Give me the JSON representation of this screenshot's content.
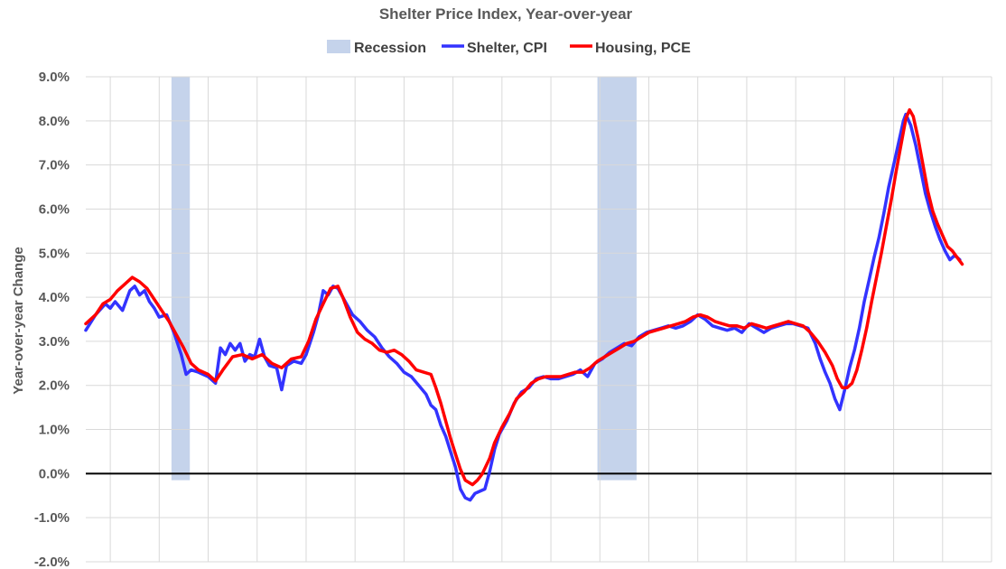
{
  "chart_data": {
    "type": "line",
    "title": "Shelter Price Index, Year-over-year",
    "ylabel": "Year-over-year Change",
    "xlabel": "",
    "ylim": [
      -2.0,
      9.0
    ],
    "y_ticks": [
      "9.0%",
      "8.0%",
      "7.0%",
      "6.0%",
      "5.0%",
      "4.0%",
      "3.0%",
      "2.0%",
      "1.0%",
      "0.0%",
      "-1.0%",
      "-2.0%"
    ],
    "x_range": [
      1987,
      2024
    ],
    "grid": true,
    "legend_position": "top",
    "recessions": [
      [
        1990.5,
        1991.25
      ],
      [
        2007.9,
        2009.5
      ]
    ],
    "series": [
      {
        "name": "Recession",
        "color": "#c5d3eb"
      },
      {
        "name": "Shelter, CPI",
        "color": "#3333ff",
        "points": [
          [
            1987.0,
            3.25
          ],
          [
            1987.4,
            3.6
          ],
          [
            1987.8,
            3.85
          ],
          [
            1988.0,
            3.75
          ],
          [
            1988.2,
            3.9
          ],
          [
            1988.5,
            3.7
          ],
          [
            1988.8,
            4.15
          ],
          [
            1989.0,
            4.25
          ],
          [
            1989.2,
            4.05
          ],
          [
            1989.4,
            4.15
          ],
          [
            1989.6,
            3.9
          ],
          [
            1989.8,
            3.75
          ],
          [
            1990.0,
            3.55
          ],
          [
            1990.3,
            3.6
          ],
          [
            1990.6,
            3.2
          ],
          [
            1990.9,
            2.7
          ],
          [
            1991.1,
            2.25
          ],
          [
            1991.3,
            2.35
          ],
          [
            1991.6,
            2.3
          ],
          [
            1992.0,
            2.2
          ],
          [
            1992.3,
            2.05
          ],
          [
            1992.5,
            2.85
          ],
          [
            1992.7,
            2.7
          ],
          [
            1992.9,
            2.95
          ],
          [
            1993.1,
            2.8
          ],
          [
            1993.3,
            2.95
          ],
          [
            1993.5,
            2.55
          ],
          [
            1993.7,
            2.7
          ],
          [
            1993.9,
            2.65
          ],
          [
            1994.1,
            3.05
          ],
          [
            1994.3,
            2.65
          ],
          [
            1994.5,
            2.45
          ],
          [
            1994.8,
            2.4
          ],
          [
            1995.0,
            1.9
          ],
          [
            1995.2,
            2.45
          ],
          [
            1995.5,
            2.55
          ],
          [
            1995.8,
            2.5
          ],
          [
            1996.0,
            2.7
          ],
          [
            1996.3,
            3.2
          ],
          [
            1996.5,
            3.6
          ],
          [
            1996.7,
            4.15
          ],
          [
            1996.9,
            4.05
          ],
          [
            1997.1,
            4.25
          ],
          [
            1997.3,
            4.2
          ],
          [
            1997.6,
            3.9
          ],
          [
            1997.9,
            3.6
          ],
          [
            1998.2,
            3.45
          ],
          [
            1998.5,
            3.25
          ],
          [
            1998.8,
            3.1
          ],
          [
            1999.1,
            2.85
          ],
          [
            1999.4,
            2.65
          ],
          [
            1999.7,
            2.5
          ],
          [
            2000.0,
            2.3
          ],
          [
            2000.3,
            2.2
          ],
          [
            2000.6,
            2.0
          ],
          [
            2000.9,
            1.8
          ],
          [
            2001.1,
            1.55
          ],
          [
            2001.3,
            1.45
          ],
          [
            2001.5,
            1.1
          ],
          [
            2001.7,
            0.85
          ],
          [
            2001.9,
            0.5
          ],
          [
            2002.1,
            0.15
          ],
          [
            2002.3,
            -0.35
          ],
          [
            2002.5,
            -0.55
          ],
          [
            2002.7,
            -0.6
          ],
          [
            2002.9,
            -0.45
          ],
          [
            2003.1,
            -0.4
          ],
          [
            2003.3,
            -0.35
          ],
          [
            2003.5,
            0.05
          ],
          [
            2003.7,
            0.55
          ],
          [
            2003.9,
            0.9
          ],
          [
            2004.2,
            1.2
          ],
          [
            2004.5,
            1.6
          ],
          [
            2004.8,
            1.85
          ],
          [
            2005.1,
            1.95
          ],
          [
            2005.4,
            2.15
          ],
          [
            2005.7,
            2.2
          ],
          [
            2006.0,
            2.15
          ],
          [
            2006.3,
            2.15
          ],
          [
            2006.6,
            2.2
          ],
          [
            2006.9,
            2.25
          ],
          [
            2007.2,
            2.35
          ],
          [
            2007.5,
            2.2
          ],
          [
            2007.8,
            2.5
          ],
          [
            2008.1,
            2.6
          ],
          [
            2008.4,
            2.75
          ],
          [
            2008.7,
            2.85
          ],
          [
            2009.0,
            2.95
          ],
          [
            2009.3,
            2.9
          ],
          [
            2009.6,
            3.1
          ],
          [
            2009.9,
            3.2
          ],
          [
            2010.2,
            3.25
          ],
          [
            2010.5,
            3.3
          ],
          [
            2010.8,
            3.35
          ],
          [
            2011.1,
            3.3
          ],
          [
            2011.4,
            3.35
          ],
          [
            2011.7,
            3.45
          ],
          [
            2012.0,
            3.6
          ],
          [
            2012.3,
            3.5
          ],
          [
            2012.6,
            3.35
          ],
          [
            2012.9,
            3.3
          ],
          [
            2013.2,
            3.25
          ],
          [
            2013.5,
            3.3
          ],
          [
            2013.8,
            3.2
          ],
          [
            2014.1,
            3.4
          ],
          [
            2014.4,
            3.3
          ],
          [
            2014.7,
            3.2
          ],
          [
            2015.0,
            3.3
          ],
          [
            2015.3,
            3.35
          ],
          [
            2015.6,
            3.4
          ],
          [
            2015.9,
            3.4
          ],
          [
            2016.2,
            3.35
          ],
          [
            2016.5,
            3.3
          ],
          [
            2016.8,
            2.95
          ],
          [
            2017.0,
            2.6
          ],
          [
            2017.2,
            2.3
          ],
          [
            2017.4,
            2.05
          ],
          [
            2017.6,
            1.7
          ],
          [
            2017.8,
            1.45
          ],
          [
            2018.0,
            1.9
          ],
          [
            2018.2,
            2.4
          ],
          [
            2018.4,
            2.8
          ],
          [
            2018.6,
            3.3
          ],
          [
            2018.8,
            3.9
          ],
          [
            2019.0,
            4.4
          ],
          [
            2019.2,
            4.9
          ],
          [
            2019.4,
            5.35
          ],
          [
            2019.6,
            5.9
          ],
          [
            2019.8,
            6.5
          ],
          [
            2020.0,
            7.0
          ],
          [
            2020.2,
            7.5
          ],
          [
            2020.4,
            8.0
          ],
          [
            2020.5,
            8.15
          ],
          [
            2020.7,
            7.9
          ],
          [
            2020.9,
            7.45
          ],
          [
            2021.1,
            6.9
          ],
          [
            2021.3,
            6.35
          ],
          [
            2021.5,
            5.95
          ],
          [
            2021.7,
            5.6
          ],
          [
            2021.9,
            5.3
          ],
          [
            2022.1,
            5.05
          ],
          [
            2022.3,
            4.85
          ],
          [
            2022.5,
            4.95
          ],
          [
            2022.7,
            4.85
          ]
        ]
      },
      {
        "name": "Housing, PCE",
        "color": "#ff0000",
        "points": [
          [
            1987.0,
            3.4
          ],
          [
            1987.4,
            3.6
          ],
          [
            1987.7,
            3.85
          ],
          [
            1988.0,
            3.95
          ],
          [
            1988.3,
            4.15
          ],
          [
            1988.6,
            4.3
          ],
          [
            1988.9,
            4.45
          ],
          [
            1989.2,
            4.35
          ],
          [
            1989.5,
            4.2
          ],
          [
            1989.8,
            3.95
          ],
          [
            1990.1,
            3.7
          ],
          [
            1990.4,
            3.45
          ],
          [
            1990.7,
            3.15
          ],
          [
            1991.0,
            2.85
          ],
          [
            1991.3,
            2.5
          ],
          [
            1991.6,
            2.35
          ],
          [
            1992.0,
            2.25
          ],
          [
            1992.3,
            2.1
          ],
          [
            1992.6,
            2.35
          ],
          [
            1993.0,
            2.65
          ],
          [
            1993.4,
            2.7
          ],
          [
            1993.8,
            2.6
          ],
          [
            1994.2,
            2.7
          ],
          [
            1994.6,
            2.5
          ],
          [
            1995.0,
            2.4
          ],
          [
            1995.4,
            2.6
          ],
          [
            1995.8,
            2.65
          ],
          [
            1996.1,
            3.0
          ],
          [
            1996.4,
            3.5
          ],
          [
            1996.7,
            3.85
          ],
          [
            1997.0,
            4.2
          ],
          [
            1997.3,
            4.25
          ],
          [
            1997.5,
            4.0
          ],
          [
            1997.8,
            3.55
          ],
          [
            1998.1,
            3.2
          ],
          [
            1998.4,
            3.05
          ],
          [
            1998.7,
            2.95
          ],
          [
            1999.0,
            2.8
          ],
          [
            1999.3,
            2.75
          ],
          [
            1999.6,
            2.8
          ],
          [
            1999.9,
            2.7
          ],
          [
            2000.2,
            2.55
          ],
          [
            2000.5,
            2.35
          ],
          [
            2000.8,
            2.3
          ],
          [
            2001.1,
            2.25
          ],
          [
            2001.3,
            1.95
          ],
          [
            2001.5,
            1.6
          ],
          [
            2001.7,
            1.2
          ],
          [
            2001.9,
            0.8
          ],
          [
            2002.1,
            0.45
          ],
          [
            2002.3,
            0.1
          ],
          [
            2002.5,
            -0.15
          ],
          [
            2002.8,
            -0.25
          ],
          [
            2003.0,
            -0.15
          ],
          [
            2003.2,
            0.0
          ],
          [
            2003.5,
            0.35
          ],
          [
            2003.7,
            0.7
          ],
          [
            2004.0,
            1.05
          ],
          [
            2004.3,
            1.35
          ],
          [
            2004.6,
            1.7
          ],
          [
            2004.9,
            1.85
          ],
          [
            2005.2,
            2.05
          ],
          [
            2005.5,
            2.15
          ],
          [
            2005.8,
            2.2
          ],
          [
            2006.1,
            2.2
          ],
          [
            2006.4,
            2.2
          ],
          [
            2006.7,
            2.25
          ],
          [
            2007.0,
            2.3
          ],
          [
            2007.3,
            2.3
          ],
          [
            2007.6,
            2.4
          ],
          [
            2007.9,
            2.55
          ],
          [
            2008.2,
            2.65
          ],
          [
            2008.5,
            2.75
          ],
          [
            2008.8,
            2.85
          ],
          [
            2009.1,
            2.95
          ],
          [
            2009.4,
            3.0
          ],
          [
            2009.7,
            3.1
          ],
          [
            2010.0,
            3.2
          ],
          [
            2010.3,
            3.25
          ],
          [
            2010.6,
            3.3
          ],
          [
            2010.9,
            3.35
          ],
          [
            2011.2,
            3.4
          ],
          [
            2011.5,
            3.45
          ],
          [
            2011.8,
            3.55
          ],
          [
            2012.1,
            3.6
          ],
          [
            2012.4,
            3.55
          ],
          [
            2012.7,
            3.45
          ],
          [
            2013.0,
            3.4
          ],
          [
            2013.3,
            3.35
          ],
          [
            2013.6,
            3.35
          ],
          [
            2013.9,
            3.3
          ],
          [
            2014.2,
            3.4
          ],
          [
            2014.5,
            3.35
          ],
          [
            2014.8,
            3.3
          ],
          [
            2015.1,
            3.35
          ],
          [
            2015.4,
            3.4
          ],
          [
            2015.7,
            3.45
          ],
          [
            2016.0,
            3.4
          ],
          [
            2016.3,
            3.35
          ],
          [
            2016.6,
            3.2
          ],
          [
            2016.9,
            3.0
          ],
          [
            2017.2,
            2.75
          ],
          [
            2017.5,
            2.45
          ],
          [
            2017.7,
            2.15
          ],
          [
            2017.9,
            1.95
          ],
          [
            2018.1,
            1.95
          ],
          [
            2018.3,
            2.05
          ],
          [
            2018.5,
            2.35
          ],
          [
            2018.7,
            2.8
          ],
          [
            2018.9,
            3.3
          ],
          [
            2019.1,
            3.9
          ],
          [
            2019.3,
            4.45
          ],
          [
            2019.5,
            5.0
          ],
          [
            2019.7,
            5.6
          ],
          [
            2019.9,
            6.2
          ],
          [
            2020.1,
            6.85
          ],
          [
            2020.3,
            7.45
          ],
          [
            2020.5,
            8.05
          ],
          [
            2020.65,
            8.25
          ],
          [
            2020.8,
            8.1
          ],
          [
            2021.0,
            7.6
          ],
          [
            2021.2,
            7.0
          ],
          [
            2021.4,
            6.4
          ],
          [
            2021.6,
            5.95
          ],
          [
            2021.8,
            5.65
          ],
          [
            2022.0,
            5.4
          ],
          [
            2022.2,
            5.15
          ],
          [
            2022.4,
            5.05
          ],
          [
            2022.6,
            4.9
          ],
          [
            2022.8,
            4.75
          ]
        ]
      }
    ]
  }
}
